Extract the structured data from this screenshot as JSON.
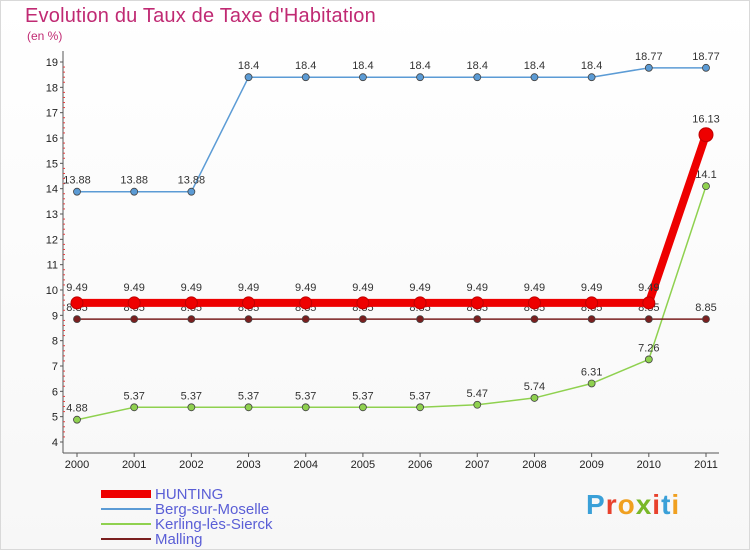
{
  "header": {
    "title": "Evolution du Taux de Taxe d'Habitation",
    "subtitle": "(en %)"
  },
  "brand": {
    "text": "Proxiti",
    "letter_colors": [
      "#3aa0d8",
      "#e8412d",
      "#f0a020",
      "#7ab829",
      "#e8412d",
      "#3aa0d8",
      "#f0a020"
    ]
  },
  "chart_data": {
    "type": "line",
    "title": "Evolution du Taux de Taxe d'Habitation",
    "ylabel": "(en %)",
    "x": [
      "2000",
      "2001",
      "2002",
      "2003",
      "2004",
      "2005",
      "2006",
      "2007",
      "2008",
      "2009",
      "2010",
      "2011"
    ],
    "ylim": [
      4,
      19
    ],
    "yticks": [
      4,
      5,
      6,
      7,
      8,
      9,
      10,
      11,
      12,
      13,
      14,
      15,
      16,
      17,
      18,
      19
    ],
    "grid": false,
    "legend_position": "bottom-left",
    "series": [
      {
        "name": "HUNTING",
        "color": "#ee0000",
        "values": [
          9.49,
          9.49,
          9.49,
          9.49,
          9.49,
          9.49,
          9.49,
          9.49,
          9.49,
          9.49,
          9.49,
          16.13
        ],
        "labels": [
          "9.49",
          "9.49",
          "9.49",
          "9.49",
          "9.49",
          "9.49",
          "9.49",
          "9.49",
          "9.49",
          "9.49",
          "9.49",
          "16.13"
        ]
      },
      {
        "name": "Berg-sur-Moselle",
        "color": "#5b9bd5",
        "values": [
          13.88,
          13.88,
          13.88,
          18.4,
          18.4,
          18.4,
          18.4,
          18.4,
          18.4,
          18.4,
          18.77,
          18.77
        ],
        "labels": [
          "13.88",
          "13.88",
          "13.88",
          "18.4",
          "18.4",
          "18.4",
          "18.4",
          "18.4",
          "18.4",
          "18.4",
          "18.77",
          "18.77"
        ]
      },
      {
        "name": "Kerling-lès-Sierck",
        "color": "#8fd14f",
        "values": [
          4.88,
          5.37,
          5.37,
          5.37,
          5.37,
          5.37,
          5.37,
          5.47,
          5.74,
          6.31,
          7.26,
          14.1
        ],
        "labels": [
          "4.88",
          "5.37",
          "5.37",
          "5.37",
          "5.37",
          "5.37",
          "5.37",
          "5.47",
          "5.74",
          "6.31",
          "7.26",
          "14.1"
        ]
      },
      {
        "name": "Malling",
        "color": "#7a1f1f",
        "values": [
          8.85,
          8.85,
          8.85,
          8.85,
          8.85,
          8.85,
          8.85,
          8.85,
          8.85,
          8.85,
          8.85,
          8.85
        ],
        "labels": [
          "8.85",
          "8.85",
          "8.85",
          "8.85",
          "8.85",
          "8.85",
          "8.85",
          "8.85",
          "8.85",
          "8.85",
          "8.85",
          "8.85"
        ]
      }
    ]
  }
}
